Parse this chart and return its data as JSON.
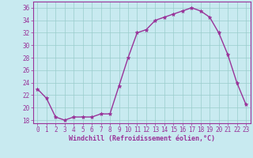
{
  "hours": [
    0,
    1,
    2,
    3,
    4,
    5,
    6,
    7,
    8,
    9,
    10,
    11,
    12,
    13,
    14,
    15,
    16,
    17,
    18,
    19,
    20,
    21,
    22,
    23
  ],
  "values": [
    23.0,
    21.5,
    18.5,
    18.0,
    18.5,
    18.5,
    18.5,
    19.0,
    19.0,
    23.5,
    28.0,
    32.0,
    32.5,
    34.0,
    34.5,
    35.0,
    35.5,
    36.0,
    35.5,
    34.5,
    32.0,
    28.5,
    24.0,
    20.5
  ],
  "line_color": "#993399",
  "marker": "*",
  "bg_color": "#c8eaf0",
  "grid_color": "#99cccc",
  "xlabel": "Windchill (Refroidissement éolien,°C)",
  "ylim": [
    17.5,
    37
  ],
  "xlim": [
    -0.5,
    23.5
  ],
  "yticks": [
    18,
    20,
    22,
    24,
    26,
    28,
    30,
    32,
    34,
    36
  ],
  "xticks": [
    0,
    1,
    2,
    3,
    4,
    5,
    6,
    7,
    8,
    9,
    10,
    11,
    12,
    13,
    14,
    15,
    16,
    17,
    18,
    19,
    20,
    21,
    22,
    23
  ],
  "axes_color": "#993399",
  "tick_color": "#993399",
  "marker_size": 3.5,
  "line_width": 1.0
}
